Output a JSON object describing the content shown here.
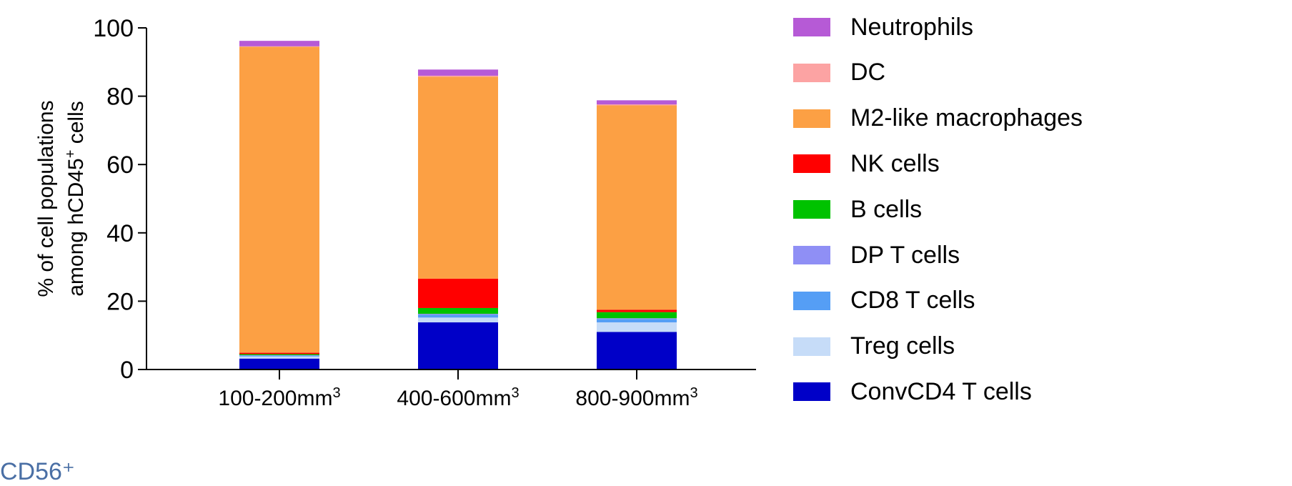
{
  "chart_data": {
    "type": "bar",
    "stacked": true,
    "categories": [
      "100-200mm3",
      "400-600mm3",
      "800-900mm3"
    ],
    "category_labels": [
      {
        "main": "100-200mm",
        "sup": "3"
      },
      {
        "main": "400-600mm",
        "sup": "3"
      },
      {
        "main": "800-900mm",
        "sup": "3"
      }
    ],
    "ylabel_line1": "% of cell populations",
    "ylabel_line2_main": "among hCD45",
    "ylabel_line2_sup": "+",
    "ylabel_line2_end": " cells",
    "ylim": [
      0,
      100
    ],
    "yticks": [
      0,
      20,
      40,
      60,
      80,
      100
    ],
    "legend_position": "right",
    "series": [
      {
        "name": "ConvCD4 T cells",
        "color": "#0000c8",
        "values": [
          3.2,
          13.8,
          11.0
        ]
      },
      {
        "name": "Treg cells",
        "color": "#c6dcf8",
        "values": [
          0.6,
          1.4,
          2.8
        ]
      },
      {
        "name": "CD8 T cells",
        "color": "#559ef5",
        "values": [
          0.3,
          0.8,
          0.9
        ]
      },
      {
        "name": "DP T cells",
        "color": "#8f8ff5",
        "values": [
          0.1,
          0.3,
          0.3
        ]
      },
      {
        "name": "B cells",
        "color": "#00c200",
        "values": [
          0.3,
          1.7,
          1.8
        ]
      },
      {
        "name": "NK cells",
        "color": "#ff0000",
        "values": [
          0.4,
          8.6,
          0.7
        ]
      },
      {
        "name": "M2-like macrophages",
        "color": "#fca044",
        "values": [
          89.6,
          59.1,
          59.8
        ]
      },
      {
        "name": "DC",
        "color": "#fca3a3",
        "values": [
          0.1,
          0.3,
          0.3
        ]
      },
      {
        "name": "Neutrophils",
        "color": "#b65ad6",
        "values": [
          1.6,
          1.8,
          1.2
        ]
      }
    ]
  },
  "legend_order": [
    "Neutrophils",
    "DC",
    "M2-like macrophages",
    "NK cells",
    "B cells",
    "DP T cells",
    "CD8 T cells",
    "Treg cells",
    "ConvCD4 T cells"
  ],
  "cropped_text": "CD56⁺"
}
